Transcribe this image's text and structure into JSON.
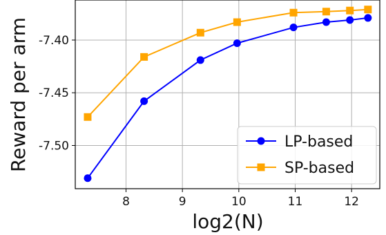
{
  "chart_data": {
    "type": "line",
    "xlabel": "log2(N)",
    "ylabel": "Reward per arm",
    "xlim": [
      7.1,
      12.5
    ],
    "ylim": [
      -7.541,
      -7.362
    ],
    "xticks": [
      "8",
      "9",
      "10",
      "11",
      "12"
    ],
    "yticks": [
      "-7.40",
      "-7.45",
      "-7.50"
    ],
    "grid": true,
    "legend_position": "bottom-right",
    "series": [
      {
        "name": "LP-based",
        "color": "#0000ff",
        "marker": "circle",
        "x": [
          7.32,
          8.32,
          9.32,
          9.97,
          10.97,
          11.55,
          11.97,
          12.29
        ],
        "y": [
          -7.531,
          -7.458,
          -7.419,
          -7.403,
          -7.388,
          -7.383,
          -7.381,
          -7.379
        ]
      },
      {
        "name": "SP-based",
        "color": "#ffa500",
        "marker": "square",
        "x": [
          7.32,
          8.32,
          9.32,
          9.97,
          10.97,
          11.55,
          11.97,
          12.29
        ],
        "y": [
          -7.473,
          -7.416,
          -7.393,
          -7.383,
          -7.374,
          -7.373,
          -7.372,
          -7.371
        ]
      }
    ]
  }
}
